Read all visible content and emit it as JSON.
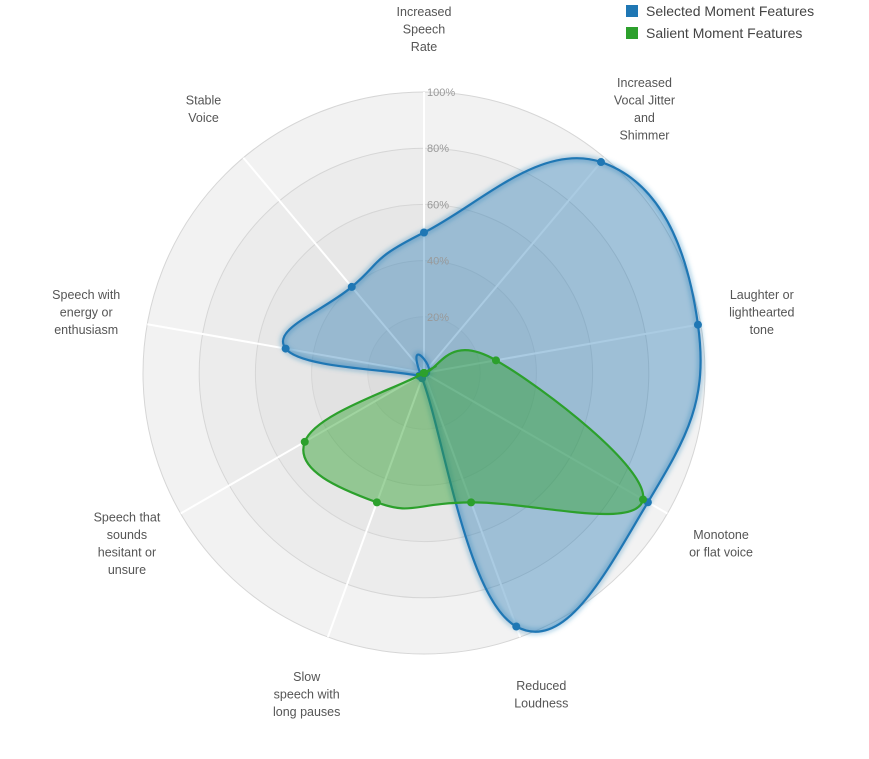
{
  "chart_data": {
    "type": "radar",
    "axes": [
      [
        "Increased",
        "Speech",
        "Rate"
      ],
      [
        "Increased",
        "Vocal Jitter",
        "and",
        "Shimmer"
      ],
      [
        "Laughter or",
        "lighthearted",
        "tone"
      ],
      [
        "Monotone",
        "or flat voice"
      ],
      [
        "Reduced",
        "Loudness"
      ],
      [
        "Slow",
        "speech with",
        "long pauses"
      ],
      [
        "Speech that",
        "sounds",
        "hesitant or",
        "unsure"
      ],
      [
        "Speech with",
        "energy or",
        "enthusiasm"
      ],
      [
        "Stable",
        "Voice"
      ]
    ],
    "r_ticks": [
      "20%",
      "40%",
      "60%",
      "80%",
      "100%"
    ],
    "r_max": 100,
    "series": [
      {
        "name": "Selected Moment Features",
        "color": "#1f77b4",
        "values": [
          50,
          98,
          99,
          92,
          96,
          2,
          2,
          50,
          40
        ]
      },
      {
        "name": "Salient Moment Features",
        "color": "#2ca02c",
        "values": [
          0,
          0,
          26,
          90,
          49,
          49,
          49,
          0,
          0
        ]
      }
    ],
    "legend_position": "top-right",
    "grid": true
  },
  "legend": {
    "items": [
      {
        "label": "Selected Moment Features",
        "color": "#1f77b4"
      },
      {
        "label": "Salient Moment Features",
        "color": "#2ca02c"
      }
    ]
  }
}
